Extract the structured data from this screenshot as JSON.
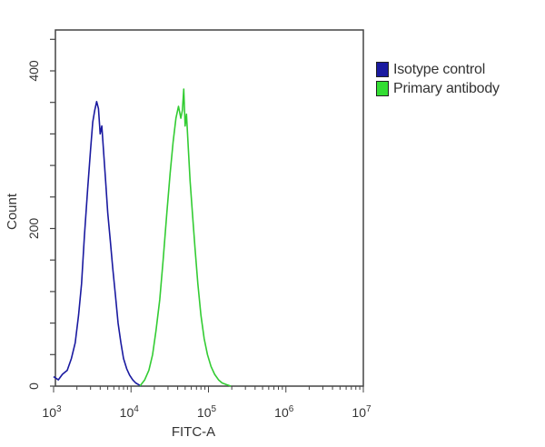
{
  "chart_data": {
    "type": "line",
    "subtype": "flow-cytometry-histogram",
    "title": "",
    "xlabel": "FITC-A",
    "ylabel": "Count",
    "xscale": "log",
    "xlim": [
      1000,
      10000000
    ],
    "ylim": [
      0,
      450
    ],
    "x_ticks": [
      {
        "value": 1000,
        "base": "10",
        "exp": "3"
      },
      {
        "value": 10000,
        "base": "10",
        "exp": "4"
      },
      {
        "value": 100000,
        "base": "10",
        "exp": "5"
      },
      {
        "value": 1000000,
        "base": "10",
        "exp": "6"
      },
      {
        "value": 10000000,
        "base": "10",
        "exp": "7"
      }
    ],
    "y_ticks": [
      0,
      200,
      400
    ],
    "grid": false,
    "legend_position": "right-top",
    "series": [
      {
        "name": "Isotype control",
        "color": "#1a1aa0",
        "x": [
          1000,
          1150,
          1300,
          1500,
          1700,
          1900,
          2100,
          2300,
          2500,
          2750,
          3000,
          3200,
          3400,
          3600,
          3800,
          4000,
          4200,
          4400,
          4700,
          5000,
          5400,
          5800,
          6300,
          6800,
          7400,
          8000,
          8800,
          9600,
          10500,
          11500,
          12500,
          13500
        ],
        "values": [
          12,
          8,
          15,
          20,
          35,
          55,
          90,
          130,
          190,
          250,
          300,
          335,
          350,
          361,
          352,
          320,
          330,
          300,
          260,
          220,
          185,
          150,
          115,
          80,
          55,
          35,
          22,
          14,
          8,
          4,
          2,
          0
        ]
      },
      {
        "name": "Primary antibody",
        "color": "#33cc33",
        "x": [
          13000,
          15000,
          17000,
          19000,
          21000,
          23500,
          26000,
          29000,
          32000,
          35000,
          38000,
          41000,
          44000,
          46000,
          48000,
          50000,
          52000,
          55000,
          58000,
          62000,
          67000,
          73000,
          80000,
          88000,
          97000,
          108000,
          120000,
          135000,
          150000,
          170000,
          195000
        ],
        "values": [
          0,
          8,
          20,
          40,
          70,
          110,
          160,
          220,
          270,
          310,
          340,
          355,
          340,
          350,
          377,
          330,
          345,
          300,
          260,
          220,
          175,
          130,
          90,
          60,
          40,
          25,
          15,
          8,
          4,
          2,
          0
        ]
      }
    ]
  },
  "legend": {
    "items": [
      {
        "label": "Isotype control",
        "color": "#1a1aa0"
      },
      {
        "label": "Primary antibody",
        "color": "#33dd33"
      }
    ]
  },
  "axes": {
    "x_title": "FITC-A",
    "y_title": "Count",
    "y_tick_labels": [
      "0",
      "200",
      "400"
    ]
  }
}
